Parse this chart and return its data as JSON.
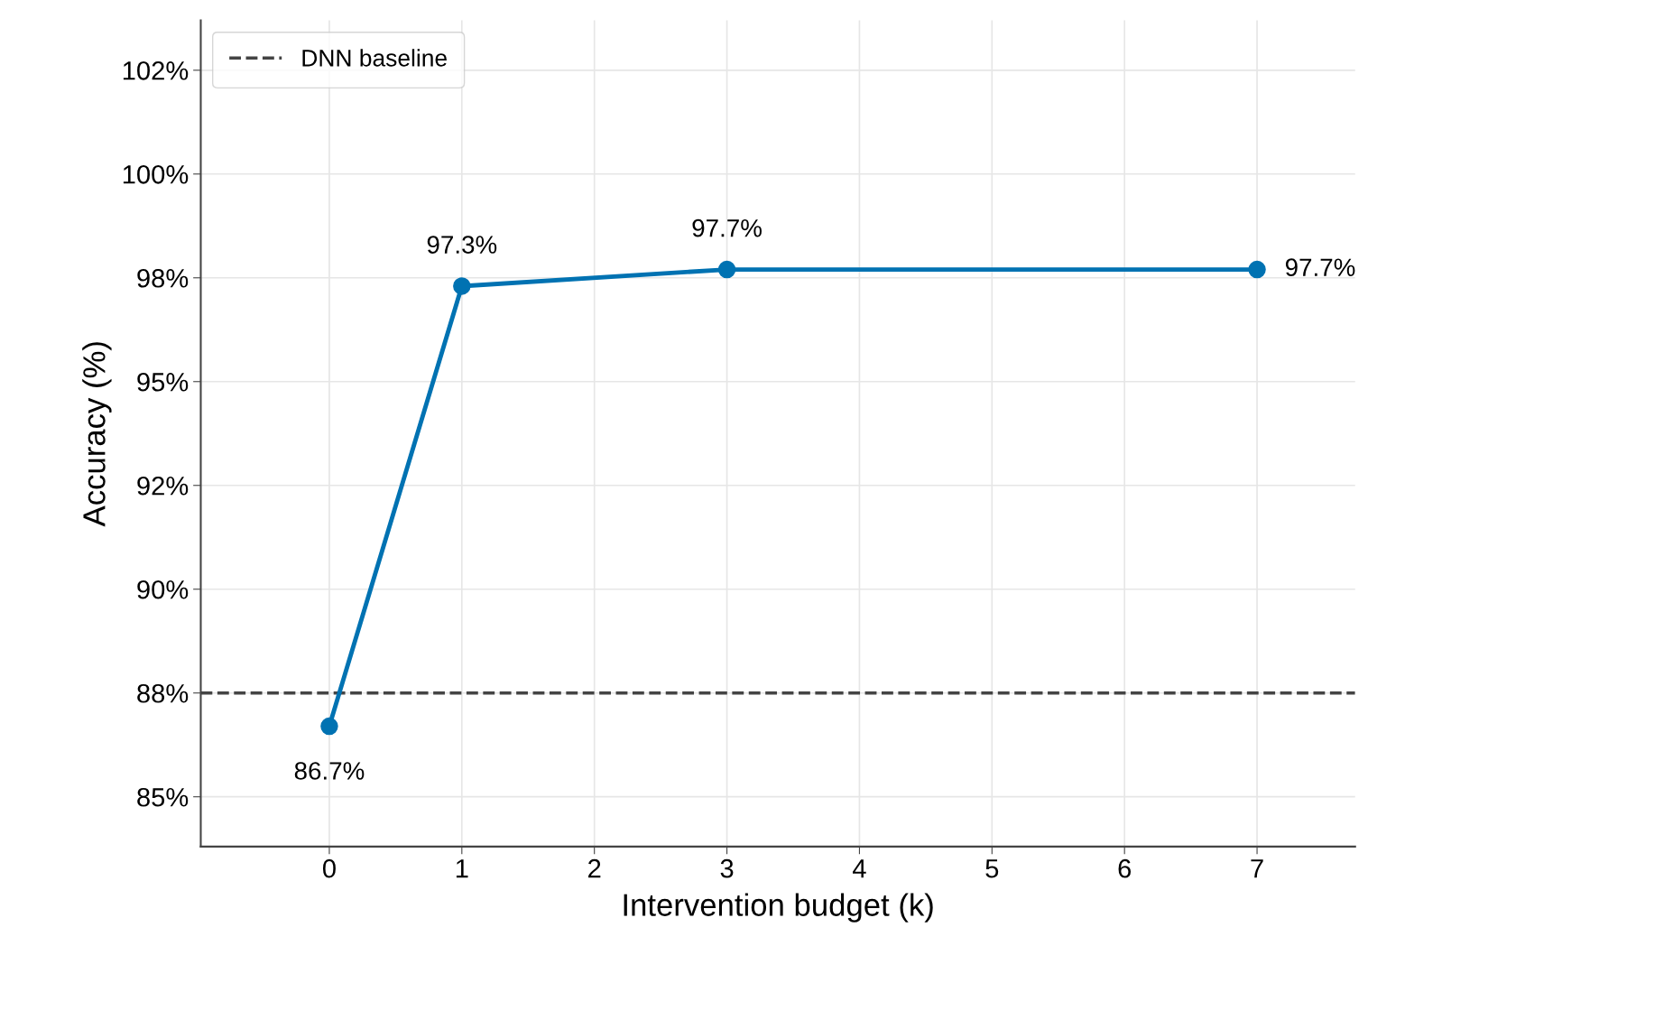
{
  "chart_data": {
    "type": "line",
    "xlabel": "Intervention budget (k)",
    "ylabel": "Accuracy (%)",
    "x": [
      0,
      1,
      3,
      7
    ],
    "series": [
      {
        "color": "#0072b2",
        "values": [
          86.7,
          97.3,
          97.7,
          97.7
        ],
        "value_labels": [
          "86.7%",
          "97.3%",
          "97.7%",
          "97.7%"
        ]
      }
    ],
    "marker": "circle",
    "line_style": "solid",
    "xlim": [
      -0.97,
      7.74
    ],
    "xticks": [
      0,
      1,
      2,
      3,
      4,
      5,
      6,
      7
    ],
    "ylim": [
      83.8,
      103.7
    ],
    "yticks": [
      {
        "value": 85,
        "label": "85%"
      },
      {
        "value": 87.5,
        "label": "88%"
      },
      {
        "value": 90,
        "label": "90%"
      },
      {
        "value": 92.5,
        "label": "92%"
      },
      {
        "value": 95,
        "label": "95%"
      },
      {
        "value": 97.5,
        "label": "98%"
      },
      {
        "value": 100,
        "label": "100%"
      },
      {
        "value": 102.5,
        "label": "102%"
      }
    ],
    "ref_lines": [
      {
        "axis": "y",
        "value": 87.5,
        "label": "DNN baseline",
        "color": "#444444",
        "line_style": "dashed"
      }
    ],
    "grid": true,
    "legend": "top left"
  }
}
